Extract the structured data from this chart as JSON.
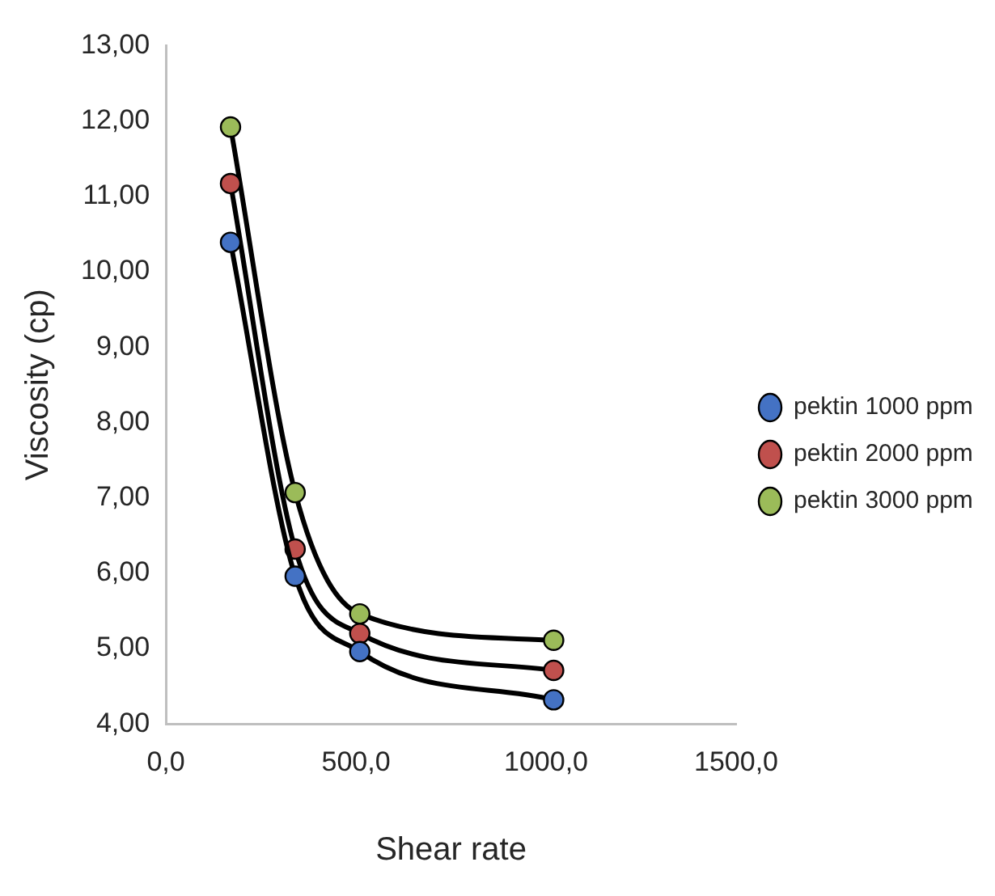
{
  "chart_data": {
    "type": "line",
    "xlabel": "Shear rate",
    "ylabel": "Viscosity (cp)",
    "x": [
      170,
      340,
      510,
      1020
    ],
    "series": [
      {
        "name": "pektin 1000 ppm",
        "color": "#4472c4",
        "values": [
          10.39,
          5.96,
          4.96,
          4.32
        ]
      },
      {
        "name": "pektin 2000 ppm",
        "color": "#c0504d",
        "values": [
          11.17,
          6.32,
          5.2,
          4.71
        ]
      },
      {
        "name": "pektin 3000 ppm",
        "color": "#9bbb59",
        "values": [
          11.92,
          7.07,
          5.46,
          5.11
        ]
      }
    ],
    "xlim": [
      0,
      1500
    ],
    "xticks": [
      {
        "value": 0,
        "label": "0,0"
      },
      {
        "value": 500,
        "label": "500,0"
      },
      {
        "value": 1000,
        "label": "1000,0"
      },
      {
        "value": 1500,
        "label": "1500,0"
      }
    ],
    "ylim": [
      4,
      13
    ],
    "yticks": [
      {
        "value": 4,
        "label": "4,00"
      },
      {
        "value": 5,
        "label": "5,00"
      },
      {
        "value": 6,
        "label": "6,00"
      },
      {
        "value": 7,
        "label": "7,00"
      },
      {
        "value": 8,
        "label": "8,00"
      },
      {
        "value": 9,
        "label": "9,00"
      },
      {
        "value": 10,
        "label": "10,00"
      },
      {
        "value": 11,
        "label": "11,00"
      },
      {
        "value": 12,
        "label": "12,00"
      },
      {
        "value": 13,
        "label": "13,00"
      }
    ],
    "grid": false,
    "legend": "right",
    "marker": "circle",
    "line_style": "solid"
  }
}
